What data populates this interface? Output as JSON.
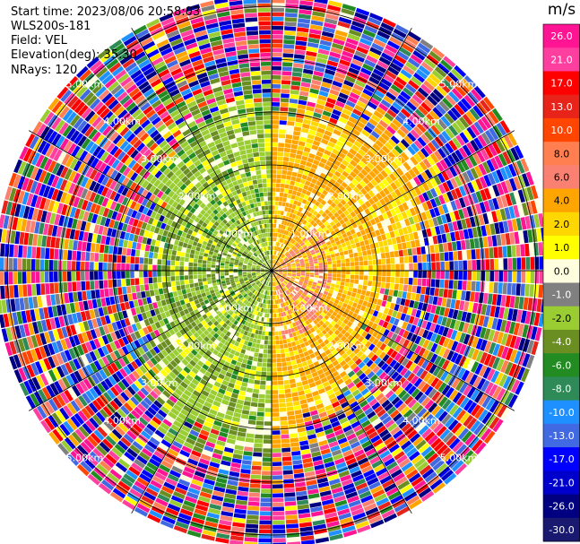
{
  "info": {
    "start_time": "Start time: 2023/08/06 20:58:03",
    "instrument": "WLS200s-181",
    "field": "Field: VEL",
    "elevation": "Elevation(deg): 35.30",
    "nrays": "NRays: 120"
  },
  "colorbar": {
    "unit": "m/s",
    "ticks": [
      "26.0",
      "21.0",
      "17.0",
      "13.0",
      "10.0",
      "8.0",
      "6.0",
      "4.0",
      "2.0",
      "1.0",
      "0.0",
      "-1.0",
      "-2.0",
      "-4.0",
      "-6.0",
      "-8.0",
      "-10.0",
      "-13.0",
      "-17.0",
      "-21.0",
      "-26.0",
      "-30.0"
    ],
    "colors": [
      "#ff1493",
      "#ff3fa0",
      "#ff0000",
      "#e8231a",
      "#ff4500",
      "#ff7f50",
      "#fa8072",
      "#ffa500",
      "#ffd700",
      "#ffff00",
      "#ffffe0",
      "#808080",
      "#9acd32",
      "#6b8e23",
      "#228b22",
      "#2e8b57",
      "#1e90ff",
      "#4169e1",
      "#0000ff",
      "#0000cd",
      "#000080",
      "#191970"
    ]
  },
  "chart_data": {
    "type": "heatmap",
    "projection": "polar PPI",
    "field": "VEL",
    "units": "m/s",
    "n_rays": 120,
    "range_ring_labels": [
      "1.00km",
      "2.00km",
      "3.00km",
      "4.00km",
      "5.00km"
    ],
    "range_rings_km": [
      1,
      2,
      3,
      4,
      5
    ],
    "value_range": [
      -30,
      26
    ],
    "pattern": {
      "near_range_km": 2.5,
      "sector_north_east": "positive 1 to 4 m/s with 6 m/s core",
      "sector_south_east": "positive 1 to 4 m/s",
      "sector_west": "negative -2 to -6 m/s",
      "sector_north_west": "negative -2 to -4 m/s",
      "far_range": "noise across full scale"
    }
  }
}
